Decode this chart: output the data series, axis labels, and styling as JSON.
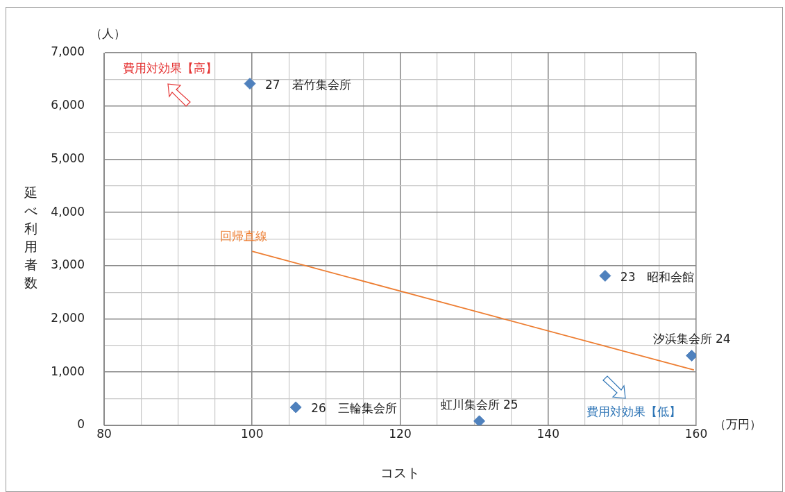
{
  "chart_data": {
    "type": "scatter",
    "xlabel": "コスト",
    "ylabel": "延べ利用者数",
    "xlim": [
      80,
      160
    ],
    "ylim": [
      0,
      7000
    ],
    "xticks": [
      80,
      {
        "value": 85,
        "label": null
      },
      {
        "value": 90,
        "label": null
      },
      {
        "value": 95,
        "label": null
      },
      100,
      {
        "value": 105,
        "label": null
      },
      {
        "value": 110,
        "label": null
      },
      {
        "value": 115,
        "label": null
      },
      120,
      {
        "value": 125,
        "label": null
      },
      {
        "value": 130,
        "label": null
      },
      {
        "value": 135,
        "label": null
      },
      140,
      {
        "value": 145,
        "label": null
      },
      {
        "value": 150,
        "label": null
      },
      {
        "value": 155,
        "label": null
      },
      160
    ],
    "yticks": [
      {
        "value": 0,
        "label": "0"
      },
      {
        "value": 500,
        "label": null
      },
      {
        "value": 1000,
        "label": "1,000"
      },
      {
        "value": 1500,
        "label": null
      },
      {
        "value": 2000,
        "label": "2,000"
      },
      {
        "value": 2500,
        "label": null
      },
      {
        "value": 3000,
        "label": "3,000"
      },
      {
        "value": 3500,
        "label": null
      },
      {
        "value": 4000,
        "label": "4,000"
      },
      {
        "value": 4500,
        "label": null
      },
      {
        "value": 5000,
        "label": "5,000"
      },
      {
        "value": 5500,
        "label": null
      },
      {
        "value": 6000,
        "label": "6,000"
      },
      {
        "value": 6500,
        "label": null
      },
      {
        "value": 7000,
        "label": "7,000"
      }
    ],
    "grid": true,
    "legend": false,
    "marker": "diamond",
    "series": [
      {
        "name": "27　若竹集会所",
        "color": "#4f81bd",
        "x": [
          99.7
        ],
        "values": [
          6420
        ]
      },
      {
        "name": "23　昭和会館",
        "color": "#4f81bd",
        "x": [
          147.7
        ],
        "values": [
          2810
        ]
      },
      {
        "name": "汐浜集会所 24",
        "color": "#4f81bd",
        "x": [
          159.4
        ],
        "values": [
          1310
        ]
      },
      {
        "name": "26　三輪集会所",
        "color": "#4f81bd",
        "x": [
          105.9
        ],
        "values": [
          340
        ]
      },
      {
        "name": "虹川集会所 25",
        "color": "#4f81bd",
        "x": [
          130.7
        ],
        "values": [
          80
        ]
      },
      {
        "name": "回帰直線",
        "type": "line",
        "color": "#ed7d31",
        "marker": "none",
        "line_style": "solid",
        "x": [
          100,
          159.7
        ],
        "values": [
          3270,
          1040
        ]
      }
    ],
    "annotations": [
      "（人）",
      "（万円）",
      "費用対効果【高】",
      "費用対効果【低】"
    ]
  }
}
